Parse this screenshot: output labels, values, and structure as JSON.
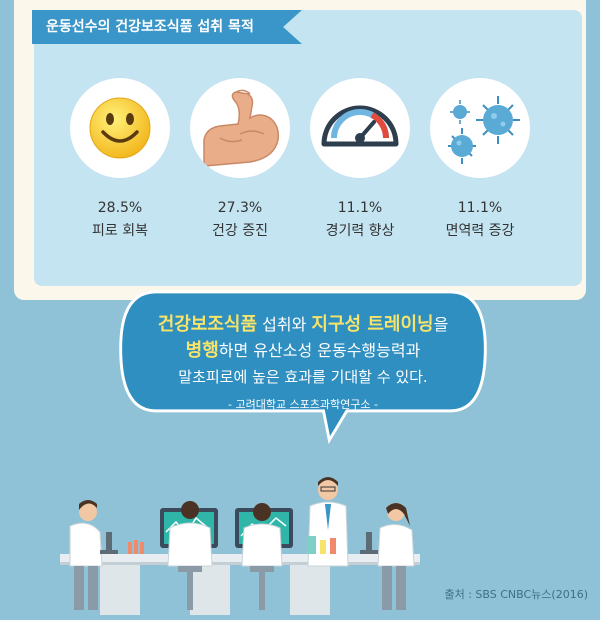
{
  "header": {
    "title": "운동선수의 건강보조식품 섭취 목적"
  },
  "stats": [
    {
      "value": "28.5%",
      "label": "피로 회복",
      "icon": "smiley-icon"
    },
    {
      "value": "27.3%",
      "label": "건강 증진",
      "icon": "flexed-arm-icon"
    },
    {
      "value": "11.1%",
      "label": "경기력 향상",
      "icon": "speedometer-icon"
    },
    {
      "value": "11.1%",
      "label": "면역력 증강",
      "icon": "virus-icon"
    }
  ],
  "bubble": {
    "line1": {
      "hl1": "건강보조식품",
      "mid": " 섭취와 ",
      "hl2": "지구성 트레이닝",
      "end": "을"
    },
    "line2": {
      "hl": "병행",
      "rest": "하면 유산소성 운동수행능력과"
    },
    "line3": "말초피로에 높은 효과를 기대할 수 있다.",
    "source": "- 고려대학교 스포츠과학연구소 -"
  },
  "footer": {
    "credit": "출처 : SBS CNBC뉴스(2016)"
  },
  "colors": {
    "background": "#8fc2d6",
    "panel": "#c4e4f1",
    "ribbon": "#3a96c8",
    "bubble": "#2f8fc0",
    "highlight": "#f6e36a"
  }
}
